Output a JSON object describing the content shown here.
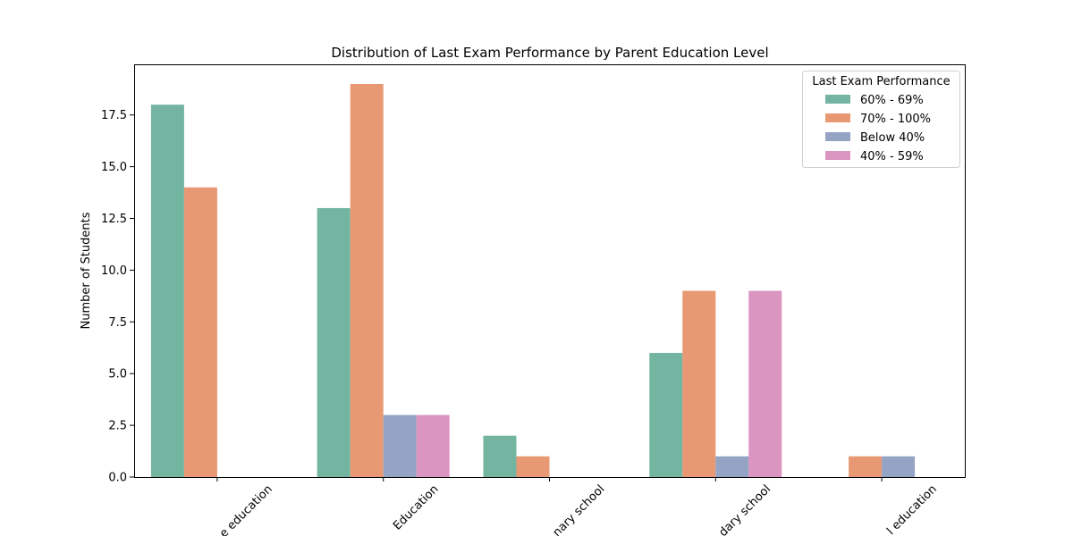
{
  "chart_data": {
    "type": "bar",
    "title": "Distribution of Last Exam Performance by Parent Education Level",
    "xlabel": "",
    "ylabel": "Number of Students",
    "categories": [
      "e education",
      "Education",
      "nary school",
      "dary school",
      "l education"
    ],
    "ylim": [
      0,
      19.95
    ],
    "yticks": [
      "0.0",
      "2.5",
      "5.0",
      "7.5",
      "10.0",
      "12.5",
      "15.0",
      "17.5"
    ],
    "ytick_values": [
      0,
      2.5,
      5,
      7.5,
      10,
      12.5,
      15,
      17.5
    ],
    "grid": false,
    "legend": {
      "title": "Last Exam Performance",
      "placement": "top-right"
    },
    "series": [
      {
        "name": "60% - 69%",
        "color": "#73b5a1",
        "values": [
          18,
          13,
          2,
          6,
          0
        ]
      },
      {
        "name": "70% - 100%",
        "color": "#e89873",
        "values": [
          14,
          19,
          1,
          9,
          1
        ]
      },
      {
        "name": "Below 40%",
        "color": "#95a3c4",
        "values": [
          0,
          3,
          0,
          1,
          1
        ]
      },
      {
        "name": "40% - 59%",
        "color": "#da95c0",
        "values": [
          0,
          3,
          0,
          9,
          0
        ]
      }
    ]
  }
}
